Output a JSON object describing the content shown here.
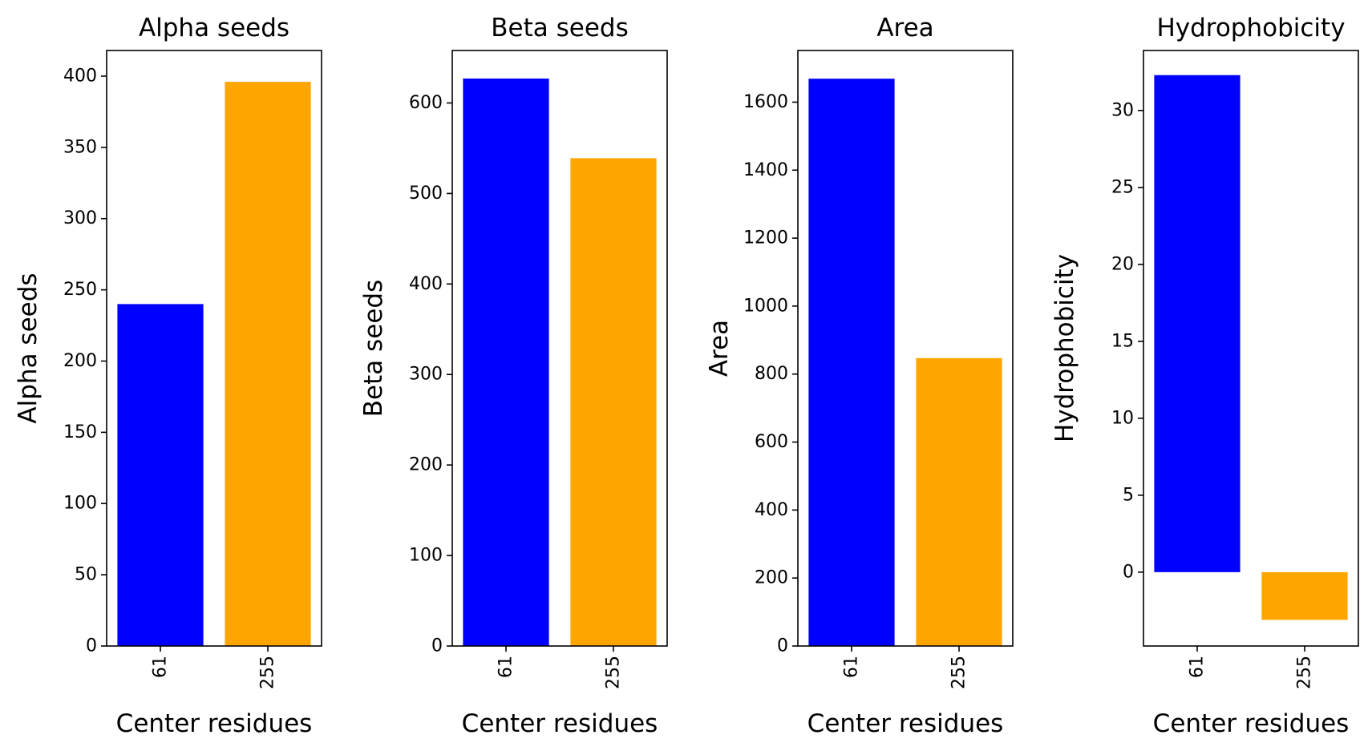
{
  "chart_data": [
    {
      "type": "bar",
      "title": "Alpha seeds",
      "xlabel": "Center residues",
      "ylabel": "Alpha seeds",
      "categories": [
        "61",
        "255"
      ],
      "values": [
        240,
        396
      ],
      "colors": [
        "#0000ff",
        "#ffa500"
      ],
      "ylim": [
        0,
        418
      ],
      "yticks": [
        0,
        50,
        100,
        150,
        200,
        250,
        300,
        350,
        400
      ],
      "grid": false
    },
    {
      "type": "bar",
      "title": "Beta seeds",
      "xlabel": "Center residues",
      "ylabel": "Beta seeds",
      "categories": [
        "61",
        "255"
      ],
      "values": [
        627,
        539
      ],
      "colors": [
        "#0000ff",
        "#ffa500"
      ],
      "ylim": [
        0,
        658
      ],
      "yticks": [
        0,
        100,
        200,
        300,
        400,
        500,
        600
      ],
      "grid": false
    },
    {
      "type": "bar",
      "title": "Area",
      "xlabel": "Center residues",
      "ylabel": "Area",
      "categories": [
        "61",
        "255"
      ],
      "values": [
        1669,
        847
      ],
      "colors": [
        "#0000ff",
        "#ffa500"
      ],
      "ylim": [
        0,
        1752
      ],
      "yticks": [
        0,
        200,
        400,
        600,
        800,
        1000,
        1200,
        1400,
        1600
      ],
      "grid": false
    },
    {
      "type": "bar",
      "title": "Hydrophobicity",
      "xlabel": "Center residues",
      "ylabel": "Hydrophobicity",
      "categories": [
        "61",
        "255"
      ],
      "values": [
        32.3,
        -3.1
      ],
      "colors": [
        "#0000ff",
        "#ffa500"
      ],
      "ylim": [
        -4.8,
        33.9
      ],
      "yticks": [
        0,
        5,
        10,
        15,
        20,
        25,
        30
      ],
      "grid": false
    }
  ]
}
